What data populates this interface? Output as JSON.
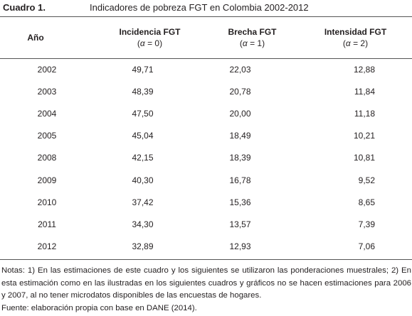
{
  "caption": {
    "label": "Cuadro 1.",
    "title": "Indicadores de pobreza FGT en Colombia 2002-2012"
  },
  "table": {
    "headers": [
      {
        "title": "Año",
        "sub": ""
      },
      {
        "title": "Incidencia FGT",
        "sub_open": "(",
        "sub_alpha": "α",
        "sub_rest": " = 0)"
      },
      {
        "title": "Brecha FGT",
        "sub_open": "(",
        "sub_alpha": "α",
        "sub_rest": " = 1)"
      },
      {
        "title": "Intensidad FGT",
        "sub_open": "(",
        "sub_alpha": "α",
        "sub_rest": " = 2)"
      }
    ],
    "rows": [
      [
        "2002",
        "49,71",
        "22,03",
        "12,88"
      ],
      [
        "2003",
        "48,39",
        "20,78",
        "11,84"
      ],
      [
        "2004",
        "47,50",
        "20,00",
        "11,18"
      ],
      [
        "2005",
        "45,04",
        "18,49",
        "10,21"
      ],
      [
        "2008",
        "42,15",
        "18,39",
        "10,81"
      ],
      [
        "2009",
        "40,30",
        "16,78",
        "9,52"
      ],
      [
        "2010",
        "37,42",
        "15,36",
        "8,65"
      ],
      [
        "2011",
        "34,30",
        "13,57",
        "7,39"
      ],
      [
        "2012",
        "32,89",
        "12,93",
        "7,06"
      ]
    ]
  },
  "notes": {
    "line1": "Notas: 1) En las estimaciones de este cuadro y los siguientes se utilizaron las ponderaciones muestrales; 2) En esta estimación como en las ilustradas en los siguientes cuadros y gráficos no se hacen estimaciones para 2006 y 2007, al no tener microdatos disponibles de las encuestas de hogares.",
    "source": "Fuente: elaboración propia con base en DANE (2014)."
  }
}
